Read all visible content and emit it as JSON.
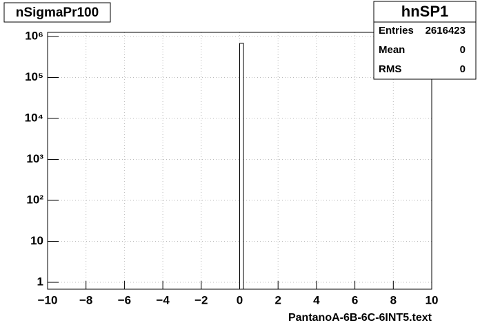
{
  "chart_data": {
    "type": "histogram",
    "title": "nSigmaPr100",
    "x_label": "PantanoA-6B-6C-6INT5.text",
    "bins": [
      0,
      0.2
    ],
    "values": [
      680000
    ],
    "color": "#ffffff",
    "edge_color": "#000000",
    "xlim": [
      -10,
      10
    ],
    "ylim": [
      0.68,
      1260000
    ],
    "log_y": true,
    "grid": true,
    "xticks": [
      {
        "value": -10,
        "label": "−10"
      },
      {
        "value": -8,
        "label": "−8"
      },
      {
        "value": -6,
        "label": "−6"
      },
      {
        "value": -4,
        "label": "−4"
      },
      {
        "value": -2,
        "label": "−2"
      },
      0,
      2,
      4,
      6,
      8,
      10
    ],
    "yticks": [
      1,
      10,
      {
        "value": 100,
        "label": "10²"
      },
      {
        "value": 1000,
        "label": "10³"
      },
      {
        "value": 10000,
        "label": "10⁴"
      },
      {
        "value": 100000,
        "label": "10⁵"
      },
      {
        "value": 1000000,
        "label": "10⁶"
      }
    ],
    "stats": {
      "name": "hnSP1",
      "rows": [
        {
          "label": "Entries",
          "value": 2616423
        },
        {
          "label": "Mean",
          "value": 0
        },
        {
          "label": "RMS",
          "value": 0
        }
      ]
    }
  }
}
